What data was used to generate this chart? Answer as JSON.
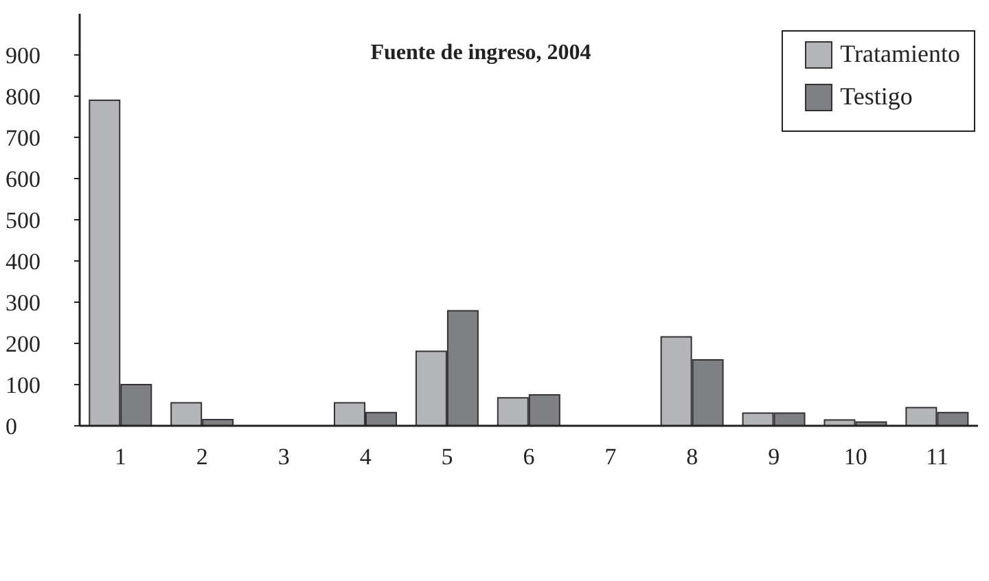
{
  "chart_data": {
    "type": "bar",
    "title": "Fuente de ingreso, 2004",
    "categories": [
      "1",
      "2",
      "3",
      "4",
      "5",
      "6",
      "7",
      "8",
      "9",
      "10",
      "11"
    ],
    "series": [
      {
        "name": "Tratamiento",
        "color": "#b4b5b9",
        "values": [
          790,
          56,
          0,
          56,
          181,
          68,
          0,
          216,
          31,
          14,
          44
        ]
      },
      {
        "name": "Testigo",
        "color": "#7f8084",
        "values": [
          100,
          15,
          0,
          32,
          279,
          75,
          0,
          160,
          31,
          9,
          32
        ]
      }
    ],
    "ylim": [
      0,
      1000
    ],
    "yticks": [
      0,
      100,
      200,
      300,
      400,
      500,
      600,
      700,
      800,
      900
    ],
    "grid": false,
    "legend": "top right"
  }
}
